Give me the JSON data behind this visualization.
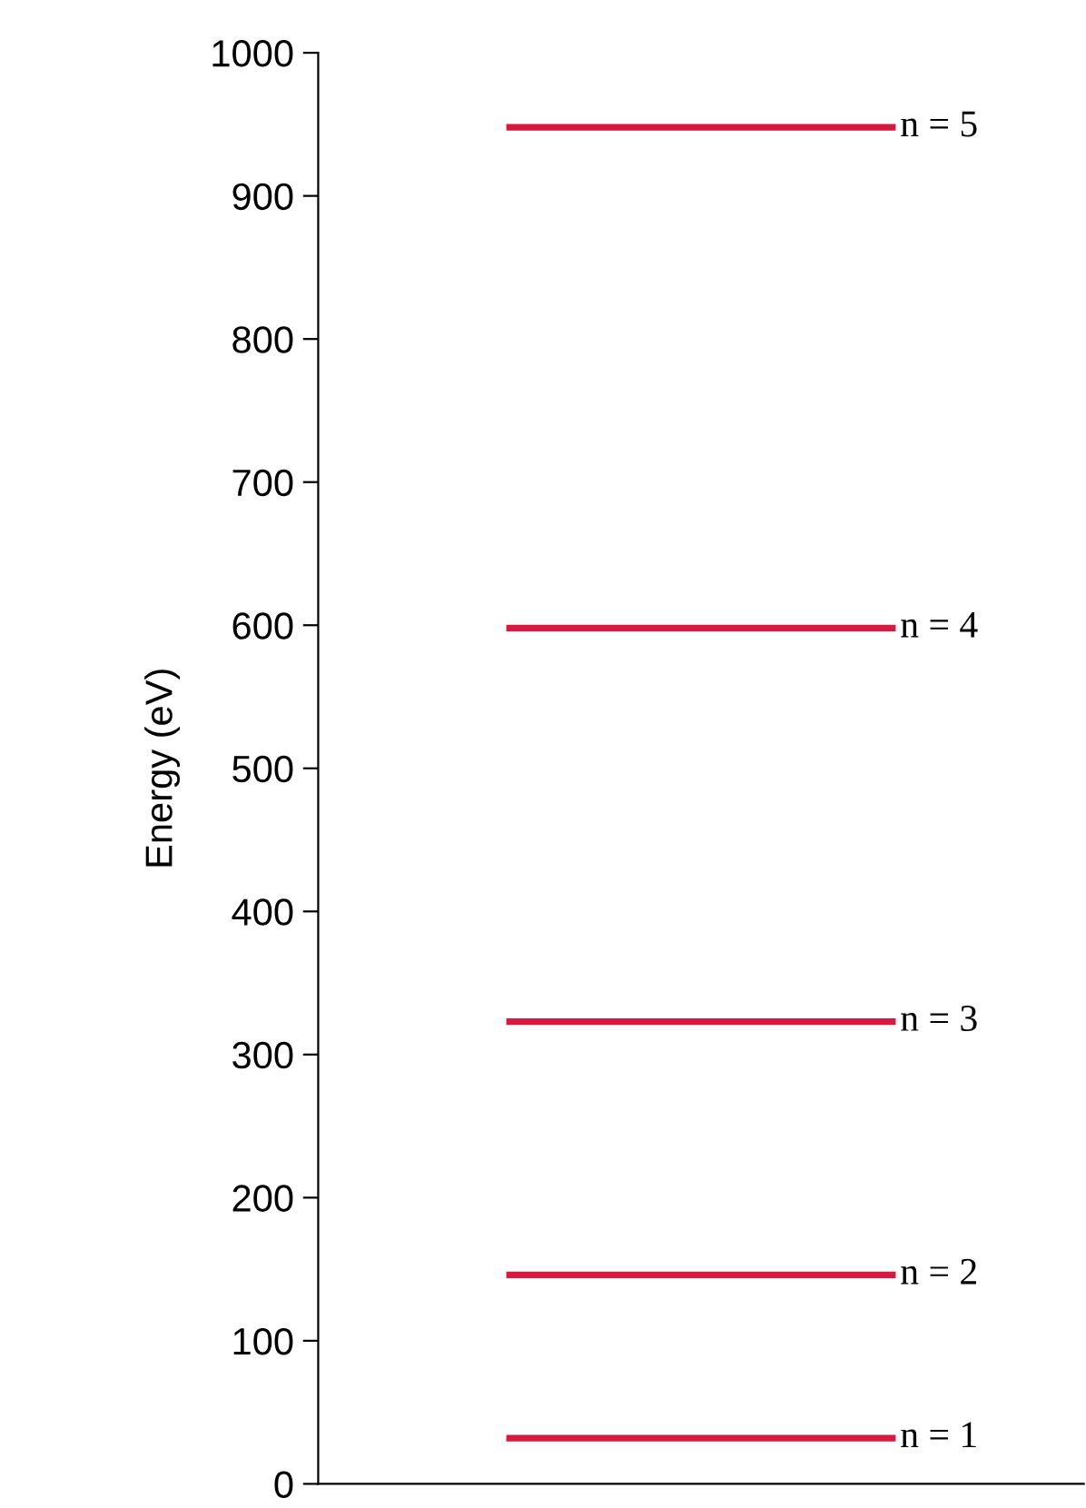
{
  "chart_data": {
    "type": "line",
    "ylabel": "Energy (eV)",
    "categories": [
      null,
      null
    ],
    "series": [
      {
        "name": "n = 1",
        "color": "#d7193f",
        "values": [
          32,
          32
        ]
      },
      {
        "name": "n = 2",
        "color": "#d7193f",
        "values": [
          146,
          146
        ]
      },
      {
        "name": "n = 3",
        "color": "#d7193f",
        "values": [
          323,
          323
        ]
      },
      {
        "name": "n = 4",
        "color": "#d7193f",
        "values": [
          598,
          598
        ]
      },
      {
        "name": "n = 5",
        "color": "#d7193f",
        "values": [
          948,
          948
        ]
      }
    ],
    "ylim": [
      0,
      1000
    ],
    "yticks": [
      0,
      100,
      200,
      300,
      400,
      500,
      600,
      700,
      800,
      900,
      1000
    ],
    "tick_labels": "y",
    "grid": false,
    "legend": false,
    "marker": "none",
    "line_style": "solid"
  }
}
